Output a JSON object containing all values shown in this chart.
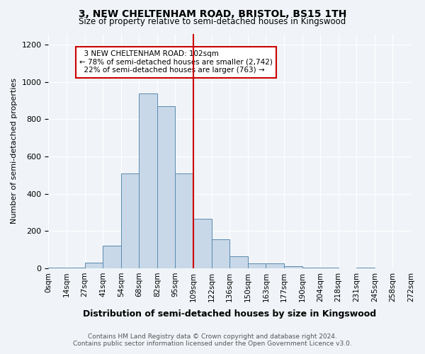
{
  "title": "3, NEW CHELTENHAM ROAD, BRISTOL, BS15 1TH",
  "subtitle": "Size of property relative to semi-detached houses in Kingswood",
  "xlabel": "Distribution of semi-detached houses by size in Kingswood",
  "ylabel": "Number of semi-detached properties",
  "footer_line1": "Contains HM Land Registry data © Crown copyright and database right 2024.",
  "footer_line2": "Contains public sector information licensed under the Open Government Licence v3.0.",
  "bin_labels": [
    "0sqm",
    "14sqm",
    "27sqm",
    "41sqm",
    "54sqm",
    "68sqm",
    "82sqm",
    "95sqm",
    "109sqm",
    "122sqm",
    "136sqm",
    "150sqm",
    "163sqm",
    "177sqm",
    "190sqm",
    "204sqm",
    "218sqm",
    "231sqm",
    "245sqm",
    "258sqm",
    "272sqm"
  ],
  "bar_values": [
    5,
    5,
    30,
    120,
    510,
    940,
    870,
    510,
    265,
    155,
    65,
    25,
    25,
    10,
    5,
    5,
    0,
    5,
    0,
    0
  ],
  "bar_color": "#c8d8e8",
  "bar_edge_color": "#5a8ab0",
  "ylim": [
    0,
    1260
  ],
  "yticks": [
    0,
    200,
    400,
    600,
    800,
    1000,
    1200
  ],
  "property_line_bin_index": 7.5,
  "property_label": "3 NEW CHELTENHAM ROAD: 102sqm",
  "smaller_pct": "78%",
  "smaller_count": "2,742",
  "larger_pct": "22%",
  "larger_count": "763",
  "annotation_box_color": "#ffffff",
  "annotation_box_edge_color": "#cc0000",
  "vline_color": "#cc0000",
  "background_color": "#f0f4f8",
  "plot_bg_color": "#f0f4f8"
}
